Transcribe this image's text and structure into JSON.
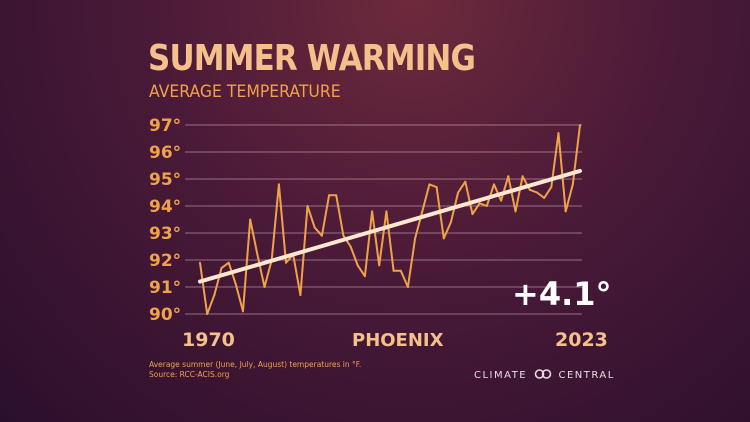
{
  "title": "SUMMER WARMING",
  "subtitle": "AVERAGE TEMPERATURE",
  "location": "PHOENIX",
  "change_label": "+4.1°",
  "footnote": {
    "line1": "Average summer (June, July, August) temperatures in °F.",
    "line2": "Source: RCC-ACIS.org"
  },
  "brand": {
    "left": "CLIMATE",
    "right": "CENTRAL",
    "icon": "climate-central-logo-icon"
  },
  "colors": {
    "line": "#f0a24a",
    "trend": "#fde8cf",
    "grid": "#d8b8c4",
    "accent": "#f0a24a"
  },
  "chart_data": {
    "type": "line",
    "title": "SUMMER WARMING",
    "subtitle": "AVERAGE TEMPERATURE",
    "xlabel": "",
    "ylabel": "",
    "x_tick_labels": [
      "1970",
      "2023"
    ],
    "y_ticks": [
      90,
      91,
      92,
      93,
      94,
      95,
      96,
      97
    ],
    "y_tick_labels": [
      "90°",
      "91°",
      "92°",
      "93°",
      "94°",
      "95°",
      "96°",
      "97°"
    ],
    "ylim": [
      90,
      97
    ],
    "xlim": [
      1970,
      2023
    ],
    "grid": "horizontal",
    "legend": "none",
    "series": [
      {
        "x": [
          1970,
          1971,
          1972,
          1973,
          1974,
          1975,
          1976,
          1977,
          1978,
          1979,
          1980,
          1981,
          1982,
          1983,
          1984,
          1985,
          1986,
          1987,
          1988,
          1989,
          1990,
          1991,
          1992,
          1993,
          1994,
          1995,
          1996,
          1997,
          1998,
          1999,
          2000,
          2001,
          2002,
          2003,
          2004,
          2005,
          2006,
          2007,
          2008,
          2009,
          2010,
          2011,
          2012,
          2013,
          2014,
          2015,
          2016,
          2017,
          2018,
          2019,
          2020,
          2021,
          2022,
          2023
        ],
        "values": [
          91.9,
          90.0,
          90.7,
          91.7,
          91.9,
          91.1,
          90.1,
          93.5,
          92.2,
          91.0,
          92.0,
          94.8,
          91.9,
          92.2,
          90.7,
          94.0,
          93.2,
          92.9,
          94.4,
          94.4,
          92.9,
          92.5,
          91.8,
          91.4,
          93.8,
          91.8,
          93.8,
          91.6,
          91.6,
          91.0,
          92.8,
          93.8,
          94.8,
          94.7,
          92.8,
          93.4,
          94.5,
          94.9,
          93.7,
          94.1,
          94.0,
          94.8,
          94.2,
          95.1,
          93.8,
          95.1,
          94.6,
          94.5,
          94.3,
          94.7,
          96.7,
          93.8,
          94.8,
          97.0
        ]
      }
    ],
    "trend": {
      "x": [
        1970,
        2023
      ],
      "values": [
        91.2,
        95.3
      ]
    },
    "annotations": [
      "+4.1°",
      "PHOENIX"
    ]
  }
}
